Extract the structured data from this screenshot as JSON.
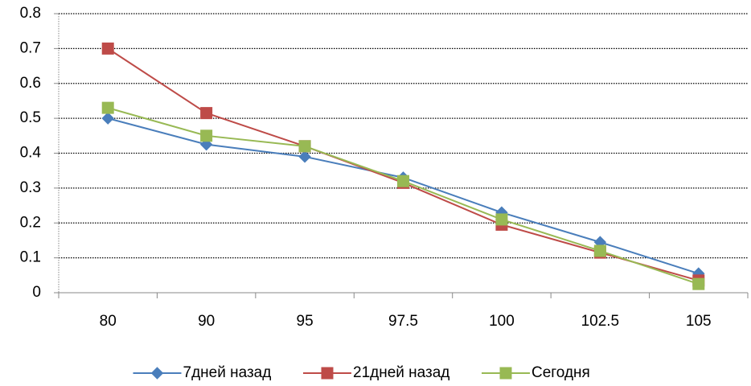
{
  "chart_data": {
    "type": "line",
    "categories": [
      "80",
      "90",
      "95",
      "97.5",
      "100",
      "102.5",
      "105"
    ],
    "series": [
      {
        "name": "7дней назад",
        "color": "#4a7ebb",
        "marker": "diamond",
        "values": [
          0.5,
          0.425,
          0.39,
          0.33,
          0.23,
          0.145,
          0.055
        ]
      },
      {
        "name": "21дней назад",
        "color": "#be4b48",
        "marker": "square",
        "values": [
          0.7,
          0.515,
          0.42,
          0.315,
          0.195,
          0.115,
          0.035
        ]
      },
      {
        "name": "Сегодня",
        "color": "#98b954",
        "marker": "square",
        "values": [
          0.53,
          0.45,
          0.42,
          0.32,
          0.21,
          0.12,
          0.025
        ]
      }
    ],
    "ylim": [
      0,
      0.8
    ],
    "yticks": [
      0,
      0.1,
      0.2,
      0.3,
      0.4,
      0.5,
      0.6,
      0.7,
      0.8
    ],
    "grid": true,
    "legend": "bottom"
  }
}
